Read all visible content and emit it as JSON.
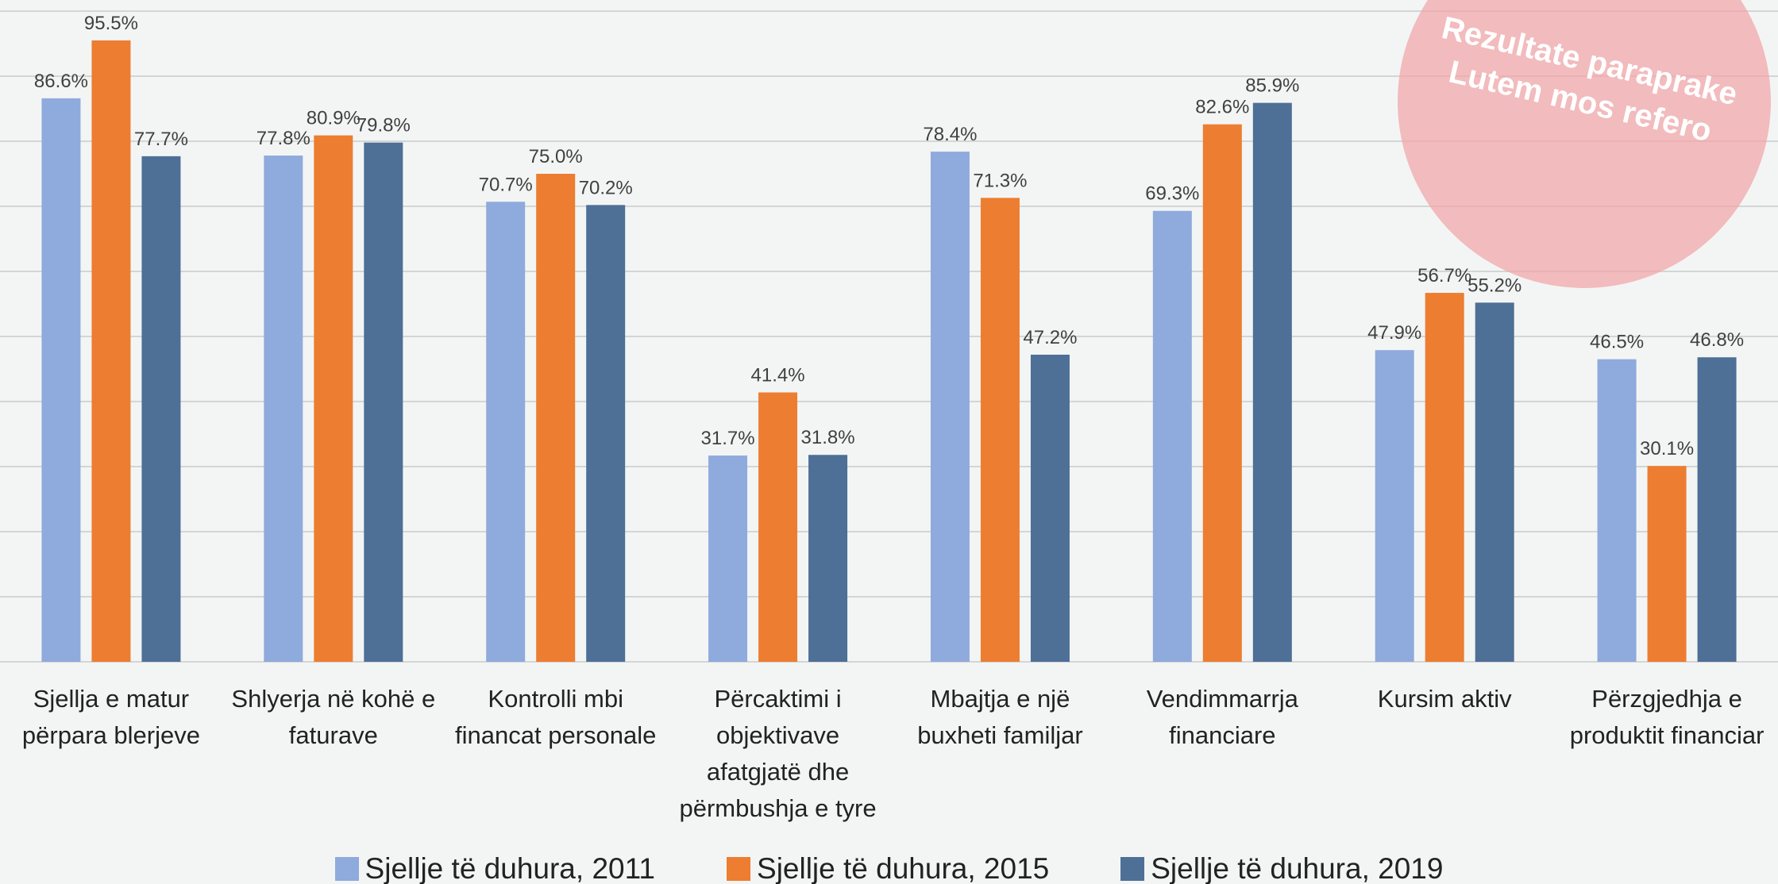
{
  "chart_data": {
    "type": "bar",
    "categories": [
      "Sjellja e matur përpara blerjeve",
      "Shlyerja në kohë e faturave",
      "Kontrolli mbi financat personale",
      "Përcaktimi i objektivave afatgjatë dhe përmbushja e tyre",
      "Mbajtja e një buxheti familjar",
      "Vendimmarrja financiare",
      "Kursim aktiv",
      "Përzgjedhja e produktit financiar"
    ],
    "series": [
      {
        "name": "Sjellje të duhura, 2011",
        "color": "#8faadc",
        "values": [
          86.6,
          77.8,
          70.7,
          31.7,
          78.4,
          69.3,
          47.9,
          46.5
        ],
        "value_labels": [
          "86.6%",
          "77.8%",
          "70.7%",
          "31.7%",
          "78.4%",
          "69.3%",
          "47.9%",
          "46.5%"
        ]
      },
      {
        "name": "Sjellje të duhura, 2015",
        "color": "#ed7d31",
        "values": [
          95.5,
          80.9,
          75.0,
          41.4,
          71.3,
          82.6,
          56.7,
          30.1
        ],
        "value_labels": [
          "95.5%",
          "80.9%",
          "75.0%",
          "41.4%",
          "71.3%",
          "82.6%",
          "56.7%",
          "30.1%"
        ]
      },
      {
        "name": "Sjellje të duhura, 2019",
        "color": "#4e6f96",
        "values": [
          77.7,
          79.8,
          70.2,
          31.8,
          47.2,
          85.9,
          55.2,
          46.8
        ],
        "value_labels": [
          "77.7%",
          "79.8%",
          "70.2%",
          "31.8%",
          "47.2%",
          "85.9%",
          "55.2%",
          "46.8%"
        ]
      }
    ],
    "ylim": [
      0,
      100
    ],
    "yticks": [
      0,
      10,
      20,
      30,
      40,
      50,
      60,
      70,
      80,
      90,
      100
    ],
    "grid": true,
    "annotation": [
      "Rezultate paraprake",
      "Lutem mos refero"
    ]
  }
}
